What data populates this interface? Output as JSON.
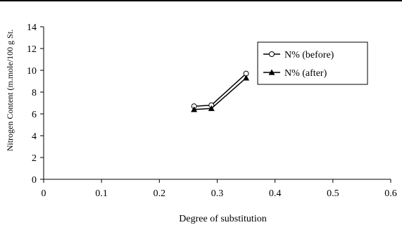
{
  "chart_data": {
    "type": "line",
    "title": "",
    "xlabel": "Degree of substitution",
    "ylabel": "Nitrogen Content (m.mole/100 g St.",
    "xlim": [
      0,
      0.6
    ],
    "ylim": [
      0,
      14
    ],
    "x_ticks": [
      0,
      0.1,
      0.2,
      0.3,
      0.4,
      0.5,
      0.6
    ],
    "x_tick_labels": [
      "0",
      "0.1",
      "0.2",
      "0.3",
      "0.4",
      "0.5",
      "0.6"
    ],
    "y_ticks": [
      0,
      2,
      4,
      6,
      8,
      10,
      12,
      14
    ],
    "y_tick_labels": [
      "0",
      "2",
      "4",
      "6",
      "8",
      "10",
      "12",
      "14"
    ],
    "grid": false,
    "legend_position": "top-right",
    "series": [
      {
        "name": "N% (before)",
        "marker": "open-circle",
        "color": "#000000",
        "x": [
          0.26,
          0.29,
          0.35
        ],
        "y": [
          6.7,
          6.8,
          9.7
        ]
      },
      {
        "name": "N% (after)",
        "marker": "filled-triangle",
        "color": "#000000",
        "x": [
          0.26,
          0.29,
          0.35
        ],
        "y": [
          6.4,
          6.5,
          9.3
        ]
      }
    ]
  }
}
